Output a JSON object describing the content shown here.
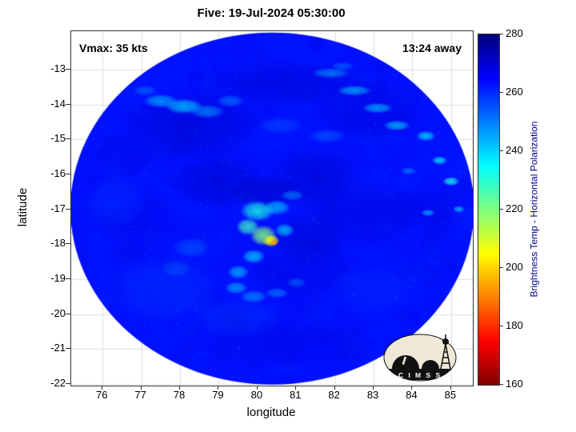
{
  "logo": {
    "text": "C I M S S"
  },
  "chart_data": {
    "type": "heatmap",
    "title": "Five: 19-Jul-2024 05:30:00",
    "xlabel": "longitude",
    "ylabel": "latitude",
    "xlim": [
      75.19,
      85.56
    ],
    "ylim": [
      -22.05,
      -11.9
    ],
    "xticks": [
      76,
      77,
      78,
      79,
      80,
      81,
      82,
      83,
      84,
      85
    ],
    "yticks": [
      -13,
      -14,
      -15,
      -16,
      -17,
      -18,
      -19,
      -20,
      -21,
      -22
    ],
    "grid": true,
    "annotations": [
      {
        "text": "Vmax: 35 kts",
        "position": "top-left"
      },
      {
        "text": "13:24 away",
        "position": "top-right"
      }
    ],
    "colorbar": {
      "label": "Brightness Temp - Horizontal Polarization",
      "ticks": [
        160,
        180,
        200,
        220,
        240,
        260,
        280
      ],
      "range": [
        160,
        280
      ],
      "colormap": "jet-reversed",
      "orientation": "vertical-right"
    },
    "swath": {
      "center": [
        80.38,
        -16.98
      ],
      "radius_deg": [
        5.21,
        5.04
      ],
      "background_temp_K": 263,
      "features": [
        [
          78.3,
          -14.6,
          1.8,
          1.0,
          271,
          0.5
        ],
        [
          80.8,
          -13.4,
          2.2,
          0.7,
          271,
          0.45
        ],
        [
          82.9,
          -14.2,
          1.5,
          0.9,
          270,
          0.4
        ],
        [
          79.0,
          -16.2,
          1.2,
          0.8,
          272,
          0.45
        ],
        [
          81.5,
          -16.1,
          1.2,
          0.9,
          272,
          0.45
        ],
        [
          80.2,
          -16.5,
          1.0,
          0.5,
          273,
          0.5
        ],
        [
          81.3,
          -17.9,
          1.0,
          0.8,
          272,
          0.4
        ],
        [
          80.9,
          -18.9,
          1.3,
          0.7,
          270,
          0.35
        ],
        [
          82.7,
          -17.1,
          1.6,
          0.9,
          270,
          0.4
        ],
        [
          84.2,
          -17.0,
          1.3,
          0.6,
          269,
          0.35
        ],
        [
          77.0,
          -17.6,
          1.2,
          1.0,
          268,
          0.3
        ],
        [
          80.5,
          -20.8,
          2.0,
          0.8,
          268,
          0.35
        ],
        [
          76.7,
          -15.4,
          0.9,
          0.7,
          269,
          0.3
        ],
        [
          77.6,
          -19.3,
          1.5,
          1.0,
          257,
          0.35
        ],
        [
          79.5,
          -20.1,
          1.2,
          0.6,
          256,
          0.3
        ],
        [
          83.0,
          -19.3,
          1.2,
          0.8,
          258,
          0.28
        ],
        [
          76.3,
          -16.8,
          0.8,
          0.8,
          257,
          0.28
        ],
        [
          80.6,
          -14.6,
          0.6,
          0.25,
          253,
          0.4
        ],
        [
          81.8,
          -14.9,
          0.5,
          0.2,
          250,
          0.45
        ],
        [
          78.3,
          -18.1,
          0.5,
          0.3,
          251,
          0.45
        ],
        [
          77.9,
          -18.7,
          0.4,
          0.25,
          252,
          0.4
        ],
        [
          77.5,
          -13.9,
          0.45,
          0.2,
          244,
          0.75
        ],
        [
          78.1,
          -14.05,
          0.5,
          0.22,
          240,
          0.75
        ],
        [
          78.7,
          -14.2,
          0.45,
          0.2,
          246,
          0.65
        ],
        [
          79.3,
          -13.9,
          0.35,
          0.18,
          248,
          0.55
        ],
        [
          77.1,
          -13.6,
          0.3,
          0.15,
          250,
          0.55
        ],
        [
          81.9,
          -13.1,
          0.5,
          0.15,
          246,
          0.65
        ],
        [
          82.5,
          -13.6,
          0.45,
          0.15,
          242,
          0.7
        ],
        [
          83.1,
          -14.1,
          0.4,
          0.15,
          240,
          0.65
        ],
        [
          83.6,
          -14.6,
          0.35,
          0.15,
          238,
          0.65
        ],
        [
          82.2,
          -12.9,
          0.3,
          0.12,
          250,
          0.55
        ],
        [
          84.35,
          -14.9,
          0.25,
          0.15,
          238,
          0.75
        ],
        [
          84.7,
          -15.6,
          0.2,
          0.12,
          235,
          0.75
        ],
        [
          85.0,
          -16.2,
          0.22,
          0.13,
          232,
          0.8
        ],
        [
          84.4,
          -17.1,
          0.18,
          0.1,
          240,
          0.65
        ],
        [
          83.9,
          -15.9,
          0.2,
          0.1,
          245,
          0.55
        ],
        [
          85.2,
          -17.0,
          0.15,
          0.1,
          238,
          0.65
        ],
        [
          80.0,
          -17.05,
          0.45,
          0.3,
          232,
          0.8
        ],
        [
          80.5,
          -16.95,
          0.35,
          0.22,
          238,
          0.65
        ],
        [
          79.75,
          -17.5,
          0.3,
          0.25,
          228,
          0.8
        ],
        [
          80.15,
          -17.75,
          0.35,
          0.3,
          220,
          0.85
        ],
        [
          80.35,
          -17.9,
          0.22,
          0.18,
          205,
          0.9
        ],
        [
          80.42,
          -17.95,
          0.1,
          0.08,
          193,
          0.95
        ],
        [
          80.7,
          -17.6,
          0.25,
          0.2,
          235,
          0.6
        ],
        [
          80.9,
          -16.6,
          0.3,
          0.15,
          244,
          0.5
        ],
        [
          79.9,
          -18.35,
          0.3,
          0.2,
          238,
          0.7
        ],
        [
          79.5,
          -18.8,
          0.28,
          0.2,
          240,
          0.65
        ],
        [
          79.45,
          -19.25,
          0.3,
          0.18,
          242,
          0.65
        ],
        [
          79.9,
          -19.5,
          0.35,
          0.18,
          244,
          0.6
        ],
        [
          80.5,
          -19.4,
          0.3,
          0.15,
          246,
          0.55
        ],
        [
          81.0,
          -19.1,
          0.25,
          0.15,
          248,
          0.45
        ]
      ]
    }
  }
}
